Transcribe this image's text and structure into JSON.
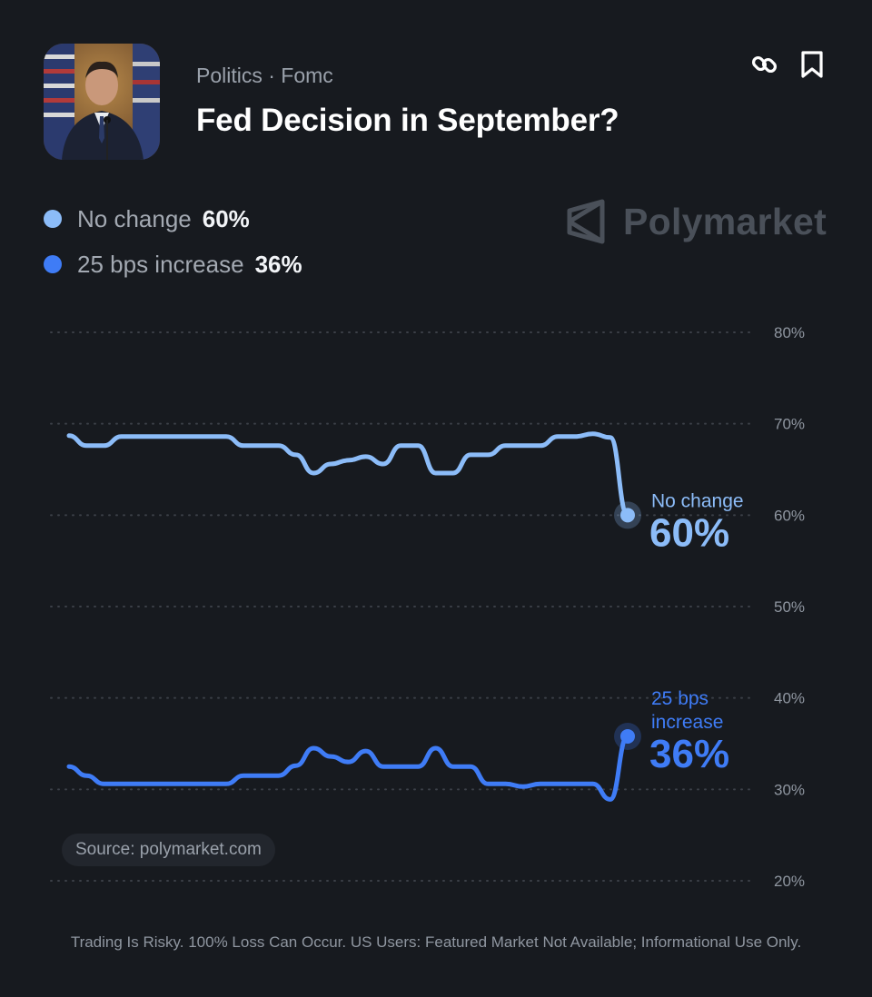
{
  "header": {
    "category": "Politics · Fomc",
    "title": "Fed Decision in September?"
  },
  "icons": {
    "link": "link-icon",
    "bookmark": "bookmark-icon",
    "brand": "polymarket-logo-icon"
  },
  "brand": {
    "name": "Polymarket"
  },
  "source": "Source: polymarket.com",
  "disclaimer": "Trading Is Risky. 100% Loss Can Occur. US Users: Featured Market Not Available; Informational Use Only.",
  "colors": {
    "background": "#171a1f",
    "no_change": "#8cbcf8",
    "increase": "#3f7cf6",
    "gridline": "#3c4048",
    "muted_text": "#9aa1ab"
  },
  "chart_data": {
    "type": "line",
    "ylim": [
      20,
      80
    ],
    "y_ticks": [
      80,
      70,
      60,
      50,
      40,
      30,
      20
    ],
    "y_tick_labels": [
      "80%",
      "70%",
      "60%",
      "50%",
      "40%",
      "30%",
      "20%"
    ],
    "grid": true,
    "legend_position": "top-left",
    "series": [
      {
        "name": "No change",
        "current_label": "60%",
        "current_value": 60,
        "color": "#8cbcf8",
        "values": [
          68.7,
          67.6,
          67.6,
          68.6,
          68.6,
          68.6,
          68.6,
          68.6,
          68.6,
          68.6,
          67.6,
          67.6,
          67.6,
          66.6,
          64.6,
          65.6,
          66.0,
          66.4,
          65.6,
          67.6,
          67.6,
          64.6,
          64.6,
          66.6,
          66.6,
          67.6,
          67.6,
          67.6,
          68.6,
          68.6,
          68.9,
          68.5,
          60.0
        ]
      },
      {
        "name": "25 bps increase",
        "current_label": "36%",
        "current_value": 36,
        "color": "#3f7cf6",
        "values": [
          32.5,
          31.5,
          30.6,
          30.6,
          30.6,
          30.6,
          30.6,
          30.6,
          30.6,
          30.6,
          31.5,
          31.5,
          31.5,
          32.6,
          34.5,
          33.6,
          33.0,
          34.2,
          32.5,
          32.5,
          32.5,
          34.5,
          32.5,
          32.5,
          30.6,
          30.6,
          30.3,
          30.6,
          30.6,
          30.6,
          30.6,
          28.9,
          35.8
        ]
      }
    ],
    "end_labels": [
      {
        "text": "No change",
        "value": "60%"
      },
      {
        "text_lines": [
          "25 bps",
          "increase"
        ],
        "value": "36%"
      }
    ]
  }
}
